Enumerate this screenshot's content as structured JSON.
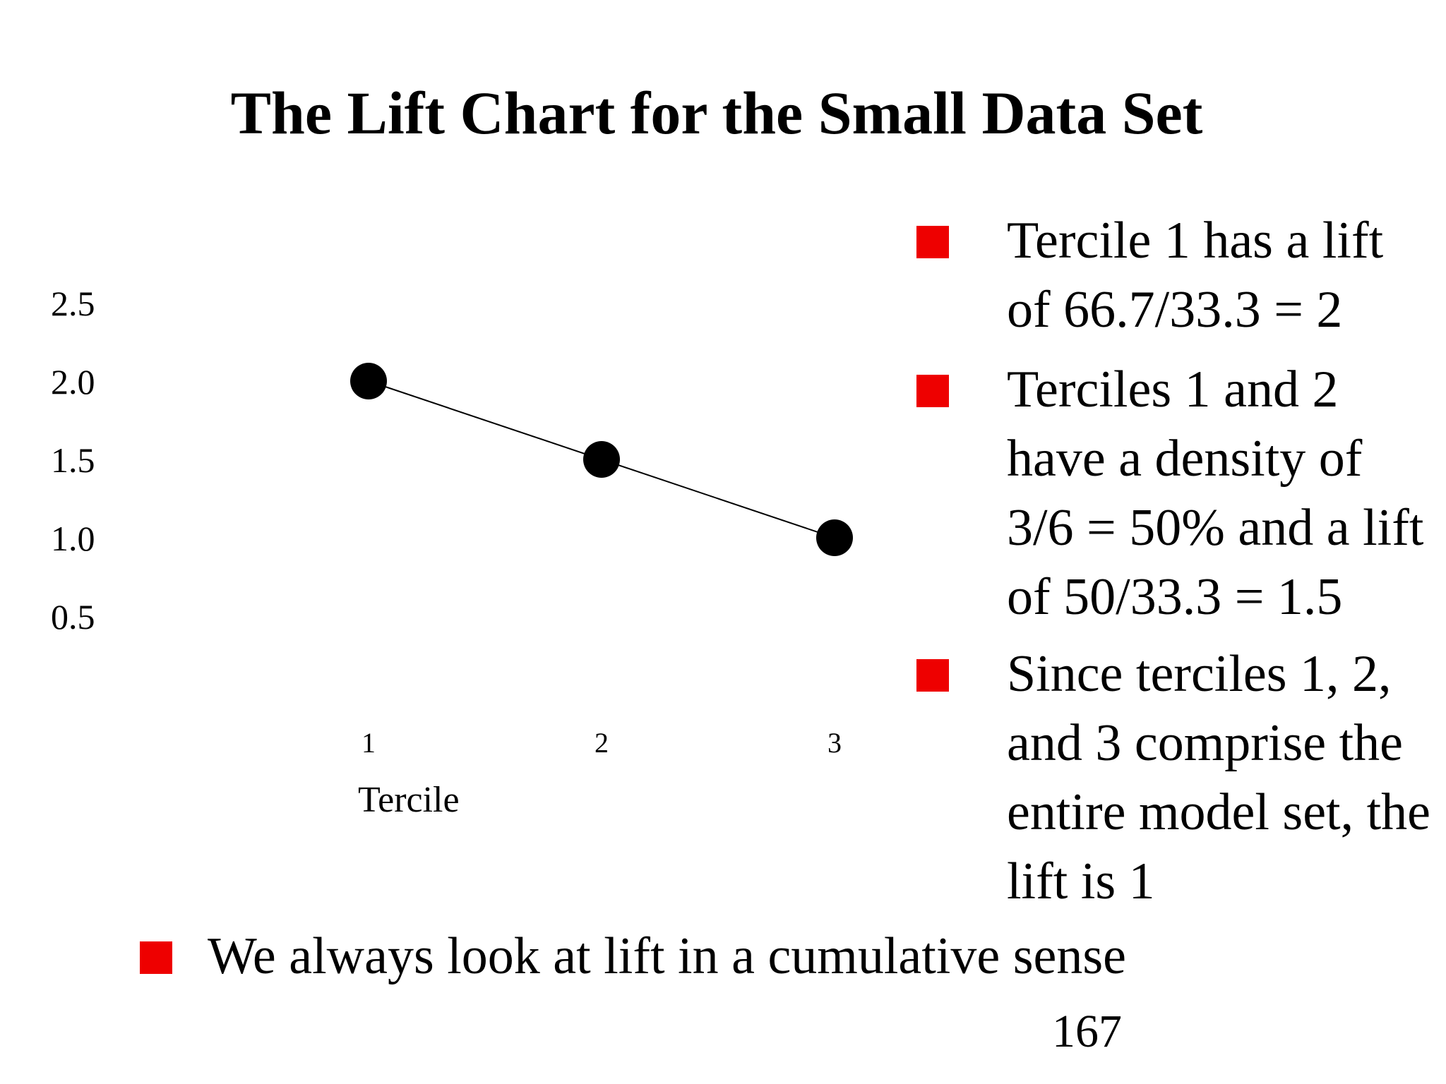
{
  "slide": {
    "title": "The Lift Chart for the Small Data Set",
    "page_number": "167",
    "accent_color": "#ee0000"
  },
  "bullets": [
    {
      "text": "Tercile 1 has a lift\n of 66.7/33.3 = 2"
    },
    {
      "text": "Terciles 1 and 2\nhave a density of\n3/6 = 50% and a lift\nof 50/33.3 = 1.5"
    },
    {
      "text": "Since terciles 1, 2,\nand 3 comprise the\nentire model set, the\nlift is 1"
    },
    {
      "text": "We always look at lift in a cumulative sense"
    }
  ],
  "chart_data": {
    "type": "line",
    "title": "",
    "xlabel": "Tercile",
    "ylabel": "",
    "x": [
      1,
      2,
      3
    ],
    "x_tick_labels": [
      "1",
      "2",
      "3"
    ],
    "y_tick_values": [
      0.5,
      1.0,
      1.5,
      2.0,
      2.5
    ],
    "y_tick_labels": [
      "0.5",
      "1.0",
      "1.5",
      "2.0",
      "2.5"
    ],
    "ylim": [
      0.5,
      2.5
    ],
    "grid": false,
    "series": [
      {
        "values": [
          2.0,
          1.5,
          1.0
        ],
        "color": "#000000",
        "marker": "circle"
      }
    ]
  }
}
